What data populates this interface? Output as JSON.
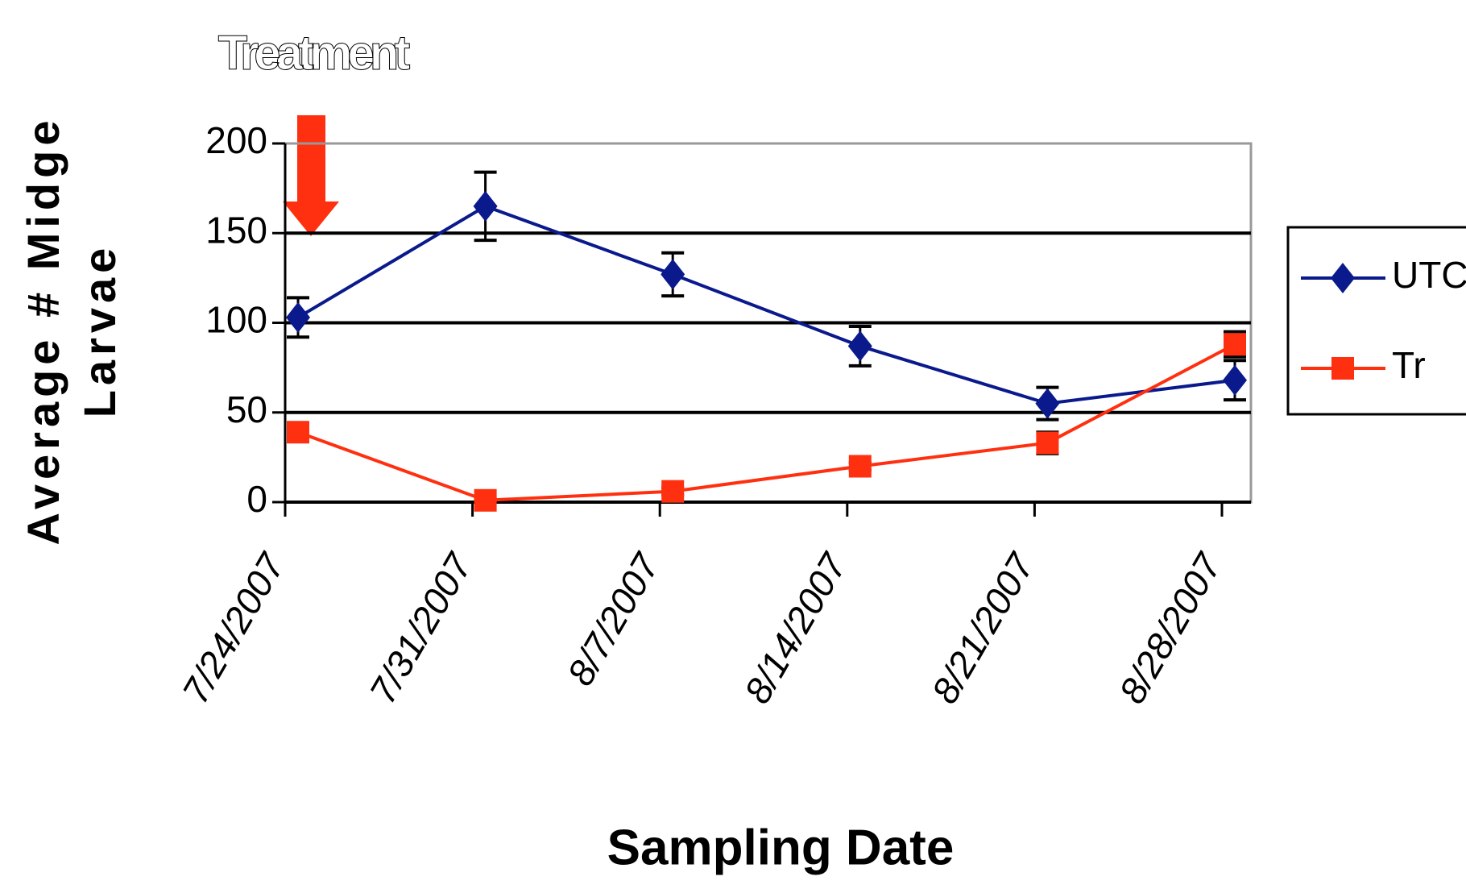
{
  "chart_data": {
    "type": "line",
    "title": "Sampling Date",
    "ylabel": [
      "Average # Midge",
      "Larvae"
    ],
    "annotation": "Treatment",
    "categories": [
      "7/24/2007",
      "7/31/2007",
      "8/7/2007",
      "8/14/2007",
      "8/21/2007",
      "8/28/2007"
    ],
    "series": [
      {
        "name": "UTC",
        "color": "#0a1a8c",
        "marker": "diamond",
        "values": [
          103,
          165,
          127,
          87,
          55,
          68
        ],
        "errors": [
          11,
          19,
          12,
          11,
          9,
          11
        ]
      },
      {
        "name": "Tr",
        "color": "#ff3010",
        "marker": "square",
        "values": [
          39,
          1,
          6,
          20,
          33,
          88
        ],
        "errors": [
          5,
          1,
          2,
          2,
          6,
          7
        ]
      }
    ],
    "ylim": [
      0,
      200
    ],
    "yticks": [
      0,
      50,
      100,
      150,
      200
    ],
    "grid": true,
    "legend": "right"
  }
}
